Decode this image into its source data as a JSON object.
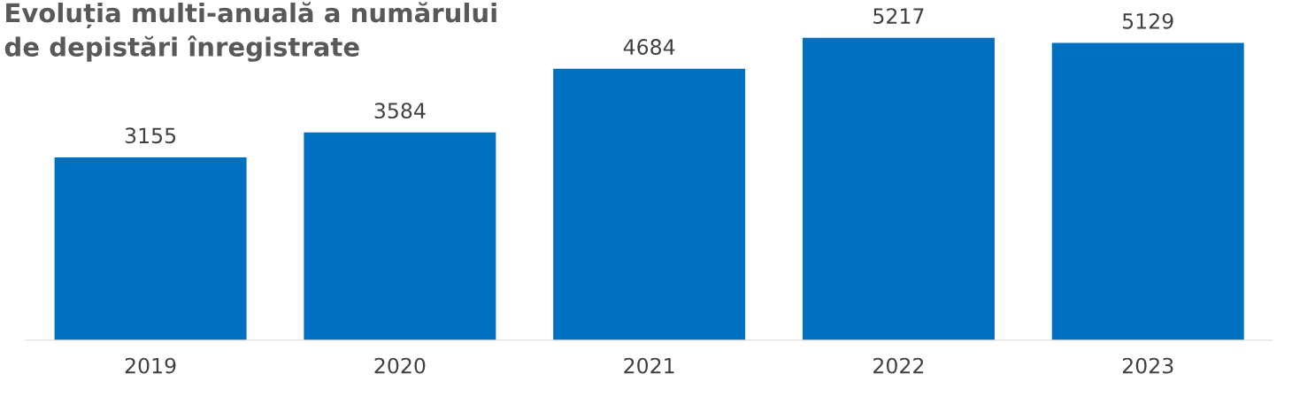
{
  "chart_data": {
    "type": "bar",
    "title": "Evoluția multi-anuală a numărului\nde depistări înregistrate",
    "categories": [
      "2019",
      "2020",
      "2021",
      "2022",
      "2023"
    ],
    "values": [
      3155,
      3584,
      4684,
      5217,
      5129
    ],
    "color": "#0070c0",
    "data_labels": true,
    "grid": false,
    "legend": false,
    "tick_labels": "x"
  }
}
